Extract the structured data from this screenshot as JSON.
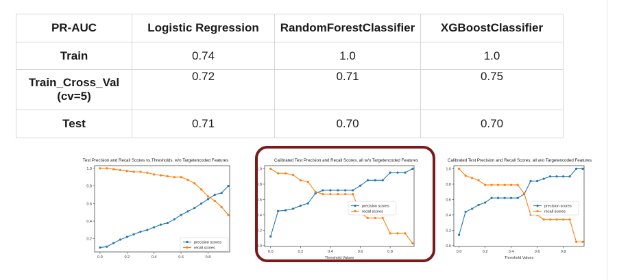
{
  "table": {
    "headers": [
      "PR-AUC",
      "Logistic Regression",
      "RandomForestClassifier",
      "XGBoostClassifier"
    ],
    "rows": [
      {
        "label": "Train",
        "values": [
          "0.74",
          "1.0",
          "1.0"
        ]
      },
      {
        "label": "Train_Cross_Val\n(cv=5)",
        "values": [
          "0.72",
          "0.71",
          "0.75"
        ]
      },
      {
        "label": "Test",
        "values": [
          "0.71",
          "0.70",
          "0.70"
        ]
      }
    ]
  },
  "colors": {
    "precision": "#1f77b4",
    "recall": "#ff7f0e",
    "highlight": "#7a1a1a"
  },
  "chart_data": [
    {
      "type": "line",
      "title": "Test Precision and Recall Scores vs.Thresholds, w/o Targetencoded Features",
      "xlabel": "",
      "ylabel": "",
      "xlim": [
        -0.04,
        0.96
      ],
      "ylim": [
        0.05,
        1.03
      ],
      "xticks": [
        "0.0",
        "0.2",
        "0.4",
        "0.6",
        "0.8"
      ],
      "yticks": [
        "0.2",
        "0.4",
        "0.6",
        "0.8",
        "1.0"
      ],
      "legend": "lower-right",
      "series": [
        {
          "name": "precision scores",
          "x": [
            0,
            0.05,
            0.1,
            0.15,
            0.2,
            0.25,
            0.3,
            0.35,
            0.4,
            0.45,
            0.5,
            0.55,
            0.6,
            0.65,
            0.7,
            0.75,
            0.8,
            0.85,
            0.9,
            0.95
          ],
          "y": [
            0.1,
            0.11,
            0.15,
            0.19,
            0.22,
            0.25,
            0.28,
            0.3,
            0.33,
            0.36,
            0.38,
            0.42,
            0.47,
            0.51,
            0.55,
            0.6,
            0.65,
            0.7,
            0.72,
            0.8
          ]
        },
        {
          "name": "recall scores",
          "x": [
            0,
            0.05,
            0.1,
            0.15,
            0.2,
            0.25,
            0.3,
            0.35,
            0.4,
            0.45,
            0.5,
            0.55,
            0.6,
            0.65,
            0.7,
            0.75,
            0.8,
            0.85,
            0.9,
            0.95
          ],
          "y": [
            1.0,
            1.0,
            0.99,
            0.98,
            0.97,
            0.96,
            0.96,
            0.95,
            0.93,
            0.92,
            0.91,
            0.9,
            0.9,
            0.87,
            0.83,
            0.76,
            0.68,
            0.63,
            0.56,
            0.47
          ]
        }
      ]
    },
    {
      "type": "line",
      "title": "Calibrated Test Precision and Recall Scores, all w/o Targetencoded Features",
      "xlabel": "Threshold Values",
      "ylabel": "",
      "xlim": [
        -0.04,
        0.96
      ],
      "ylim": [
        -0.01,
        1.04
      ],
      "xticks": [
        "0.0",
        "0.2",
        "0.4",
        "0.6",
        "0.8"
      ],
      "yticks": [
        "0.0",
        "0.2",
        "0.4",
        "0.6",
        "0.8",
        "1.0"
      ],
      "legend": "center-right",
      "series": [
        {
          "name": "precision scores",
          "x": [
            0,
            0.05,
            0.1,
            0.15,
            0.2,
            0.25,
            0.3,
            0.35,
            0.4,
            0.45,
            0.5,
            0.55,
            0.6,
            0.65,
            0.7,
            0.75,
            0.8,
            0.85,
            0.9,
            0.95
          ],
          "y": [
            0.12,
            0.45,
            0.46,
            0.48,
            0.52,
            0.55,
            0.68,
            0.72,
            0.72,
            0.72,
            0.72,
            0.72,
            0.78,
            0.85,
            0.85,
            0.85,
            0.95,
            0.95,
            0.95,
            1.0
          ]
        },
        {
          "name": "recall scores",
          "x": [
            0,
            0.05,
            0.1,
            0.15,
            0.2,
            0.25,
            0.3,
            0.35,
            0.4,
            0.45,
            0.5,
            0.55,
            0.6,
            0.65,
            0.7,
            0.75,
            0.8,
            0.85,
            0.9,
            0.95
          ],
          "y": [
            1.0,
            0.94,
            0.94,
            0.92,
            0.85,
            0.83,
            0.7,
            0.67,
            0.67,
            0.67,
            0.67,
            0.67,
            0.43,
            0.36,
            0.36,
            0.36,
            0.16,
            0.16,
            0.16,
            0.03
          ]
        }
      ]
    },
    {
      "type": "line",
      "title": "Calibrated Test Precision and Recall Scores, all w/o Targetencoded Features",
      "xlabel": "Threshold Values",
      "ylabel": "",
      "xlim": [
        -0.04,
        0.96
      ],
      "ylim": [
        -0.01,
        1.04
      ],
      "xticks": [
        "0.0",
        "0.2",
        "0.4",
        "0.6",
        "0.8"
      ],
      "yticks": [
        "0.0",
        "0.2",
        "0.4",
        "0.6",
        "0.8",
        "1.0"
      ],
      "legend": "center-right",
      "series": [
        {
          "name": "precision scores",
          "x": [
            0,
            0.05,
            0.1,
            0.15,
            0.2,
            0.25,
            0.3,
            0.35,
            0.4,
            0.45,
            0.5,
            0.55,
            0.6,
            0.65,
            0.7,
            0.75,
            0.8,
            0.85,
            0.9,
            0.95
          ],
          "y": [
            0.14,
            0.44,
            0.48,
            0.53,
            0.56,
            0.62,
            0.62,
            0.62,
            0.62,
            0.62,
            0.67,
            0.84,
            0.84,
            0.87,
            0.9,
            0.9,
            0.9,
            0.9,
            1.0,
            1.0
          ]
        },
        {
          "name": "recall scores",
          "x": [
            0,
            0.05,
            0.1,
            0.15,
            0.2,
            0.25,
            0.3,
            0.35,
            0.4,
            0.45,
            0.5,
            0.55,
            0.6,
            0.65,
            0.7,
            0.75,
            0.8,
            0.85,
            0.9,
            0.95
          ],
          "y": [
            1.0,
            0.91,
            0.88,
            0.85,
            0.79,
            0.79,
            0.79,
            0.79,
            0.79,
            0.79,
            0.68,
            0.4,
            0.4,
            0.34,
            0.34,
            0.34,
            0.34,
            0.34,
            0.05,
            0.05
          ]
        }
      ]
    }
  ]
}
